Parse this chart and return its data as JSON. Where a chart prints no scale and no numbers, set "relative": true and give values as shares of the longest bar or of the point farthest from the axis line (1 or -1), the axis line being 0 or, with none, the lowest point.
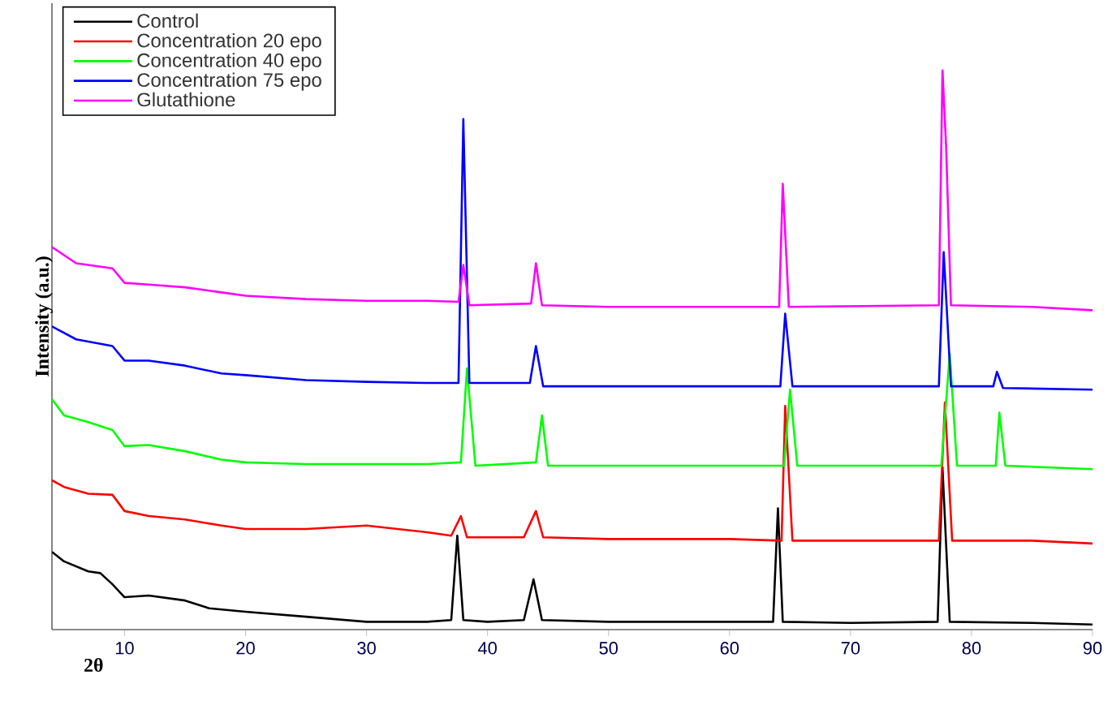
{
  "chart_data": {
    "type": "line",
    "relative": true,
    "xlabel": "2θ",
    "ylabel": "Intensity (a.u.)",
    "xlim": [
      4,
      90
    ],
    "xticks": [
      10,
      20,
      30,
      40,
      50,
      60,
      70,
      80,
      90
    ],
    "legend": "top left",
    "grid": false,
    "marker": "none",
    "line_style": "solid",
    "series": [
      {
        "name": "Control",
        "color": "#000000",
        "x": [
          4,
          5,
          7,
          8,
          9,
          10,
          12,
          15,
          17,
          20,
          25,
          30,
          35,
          37,
          37.5,
          38,
          40,
          43,
          43.8,
          44.5,
          50,
          60,
          63.6,
          64.0,
          64.4,
          70,
          77.2,
          77.6,
          78.2,
          85,
          90
        ],
        "values": [
          0.139,
          0.122,
          0.104,
          0.101,
          0.081,
          0.058,
          0.061,
          0.052,
          0.038,
          0.032,
          0.023,
          0.014,
          0.014,
          0.017,
          0.168,
          0.017,
          0.014,
          0.017,
          0.09,
          0.017,
          0.014,
          0.014,
          0.014,
          0.217,
          0.014,
          0.012,
          0.014,
          0.29,
          0.014,
          0.012,
          0.009
        ]
      },
      {
        "name": "Concentration 20 epo",
        "color": "#ff0000",
        "x": [
          4,
          5,
          7,
          9,
          10,
          12,
          15,
          18,
          20,
          25,
          30,
          35,
          37,
          37.8,
          38.3,
          43,
          44,
          44.6,
          50,
          60,
          64.3,
          64.6,
          65.2,
          77.3,
          77.8,
          78.4,
          85,
          90
        ],
        "values": [
          0.267,
          0.255,
          0.243,
          0.241,
          0.212,
          0.203,
          0.197,
          0.186,
          0.18,
          0.18,
          0.186,
          0.174,
          0.168,
          0.203,
          0.165,
          0.165,
          0.212,
          0.165,
          0.162,
          0.162,
          0.159,
          0.4,
          0.159,
          0.159,
          0.406,
          0.159,
          0.159,
          0.154
        ]
      },
      {
        "name": "Concentration 40 epo",
        "color": "#00ff00",
        "x": [
          4,
          5,
          7,
          9,
          10,
          12,
          15,
          18,
          20,
          25,
          30,
          35,
          37.8,
          38.3,
          39,
          44,
          44.5,
          45,
          50,
          64.5,
          65,
          65.6,
          77.5,
          78.2,
          78.8,
          82,
          82.3,
          82.8,
          90
        ],
        "values": [
          0.412,
          0.383,
          0.371,
          0.357,
          0.328,
          0.33,
          0.319,
          0.304,
          0.299,
          0.296,
          0.296,
          0.296,
          0.299,
          0.467,
          0.293,
          0.299,
          0.383,
          0.293,
          0.293,
          0.293,
          0.429,
          0.293,
          0.293,
          0.493,
          0.293,
          0.293,
          0.388,
          0.293,
          0.287
        ]
      },
      {
        "name": "Concentration 75 epo",
        "color": "#0000ff",
        "x": [
          4,
          6,
          9,
          10,
          12,
          15,
          18,
          20,
          25,
          30,
          35,
          37.6,
          38,
          38.5,
          43.5,
          44,
          44.6,
          50,
          64.2,
          64.6,
          65.2,
          77.3,
          77.7,
          78.3,
          81.8,
          82.1,
          82.6,
          90
        ],
        "values": [
          0.542,
          0.519,
          0.507,
          0.481,
          0.481,
          0.472,
          0.458,
          0.455,
          0.446,
          0.443,
          0.441,
          0.441,
          0.913,
          0.441,
          0.441,
          0.507,
          0.435,
          0.435,
          0.435,
          0.565,
          0.435,
          0.435,
          0.675,
          0.435,
          0.435,
          0.461,
          0.432,
          0.429
        ]
      },
      {
        "name": "Glutathione",
        "color": "#ff00ff",
        "x": [
          4,
          6,
          9,
          10,
          12,
          15,
          18,
          20,
          25,
          30,
          35,
          37.6,
          38,
          38.5,
          43.6,
          44,
          44.5,
          50,
          60,
          64.1,
          64.4,
          64.9,
          77.3,
          77.6,
          77.9,
          78.3,
          85,
          90
        ],
        "values": [
          0.684,
          0.655,
          0.646,
          0.62,
          0.617,
          0.612,
          0.603,
          0.597,
          0.591,
          0.588,
          0.588,
          0.586,
          0.652,
          0.58,
          0.583,
          0.655,
          0.58,
          0.577,
          0.577,
          0.577,
          0.797,
          0.577,
          0.58,
          1,
          0.864,
          0.58,
          0.577,
          0.571
        ]
      }
    ]
  }
}
